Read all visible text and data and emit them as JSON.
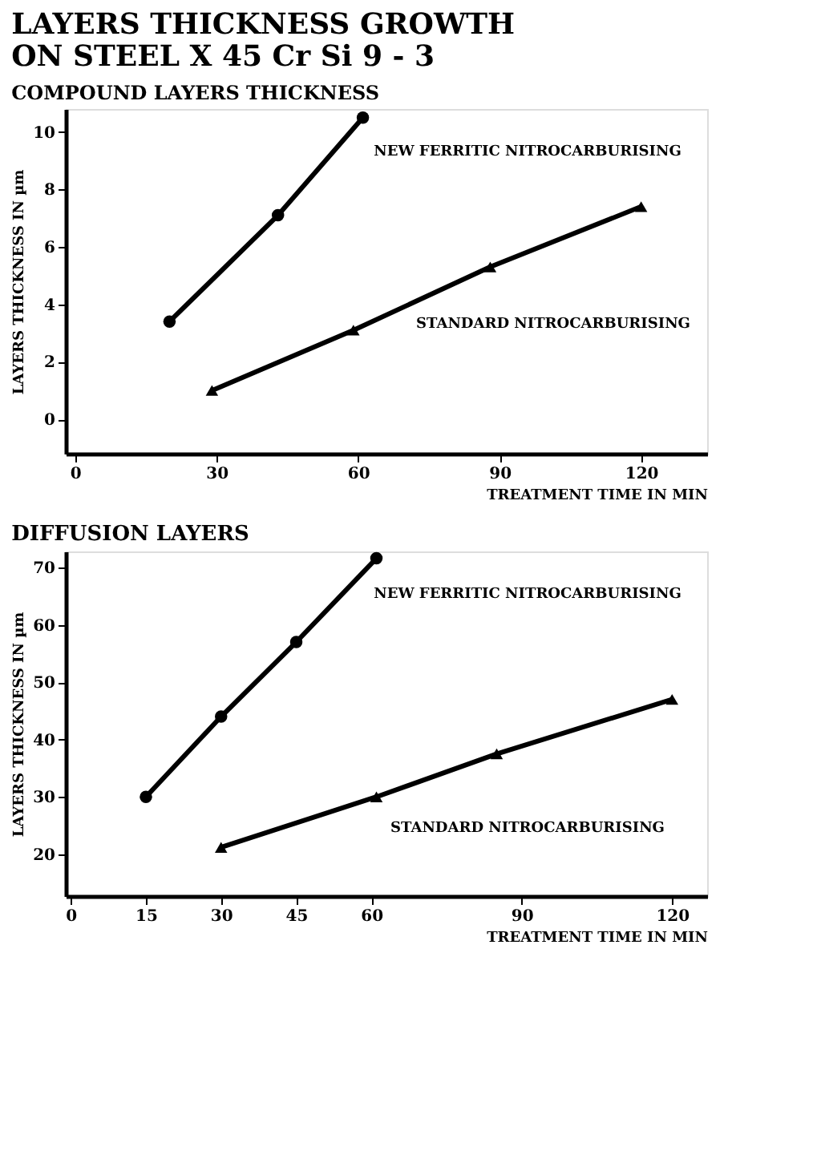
{
  "chart_data": [
    {
      "type": "line",
      "title": [
        "LAYERS THICKNESS GROWTH",
        "ON STEEL X 45 Cr Si 9 - 3"
      ],
      "subtitle": "COMPOUND LAYERS THICKNESS",
      "xlabel": "TREATMENT TIME IN MIN",
      "ylabel": "LAYERS THICKNESS IN µm",
      "xlim": [
        -2,
        134
      ],
      "ylim": [
        -1.2,
        10.8
      ],
      "xticks": [
        0,
        30,
        60,
        90,
        120
      ],
      "yticks": [
        0,
        2,
        4,
        6,
        8,
        10
      ],
      "series": [
        {
          "name": "NEW FERRITIC NITROCARBURISING",
          "color": "#000000",
          "marker": "circle",
          "x": [
            20,
            43,
            61
          ],
          "values": [
            3.4,
            7.1,
            10.5
          ]
        },
        {
          "name": "STANDARD NITROCARBURISING",
          "color": "#000000",
          "marker": "triangle",
          "x": [
            29,
            59,
            88,
            120
          ],
          "values": [
            1.0,
            3.1,
            5.3,
            7.4
          ]
        }
      ]
    },
    {
      "type": "line",
      "title": "DIFFUSION LAYERS",
      "xlabel": "TREATMENT TIME IN MIN",
      "ylabel": "LAYERS THICKNESS IN µm",
      "xlim": [
        -1,
        127
      ],
      "ylim": [
        12.7,
        72.8
      ],
      "xticks": [
        0,
        15,
        30,
        45,
        60,
        90,
        120
      ],
      "yticks": [
        20,
        30,
        40,
        50,
        60,
        70
      ],
      "series": [
        {
          "name": "NEW FERRITIC NITROCARBURISING",
          "color": "#000000",
          "marker": "circle",
          "x": [
            15,
            30,
            45,
            61
          ],
          "values": [
            30,
            44,
            57,
            71.6
          ]
        },
        {
          "name": "STANDARD NITROCARBURISING",
          "color": "#000000",
          "marker": "triangle",
          "x": [
            30,
            61,
            85,
            120
          ],
          "values": [
            21.2,
            30,
            37.5,
            47
          ]
        }
      ]
    }
  ]
}
